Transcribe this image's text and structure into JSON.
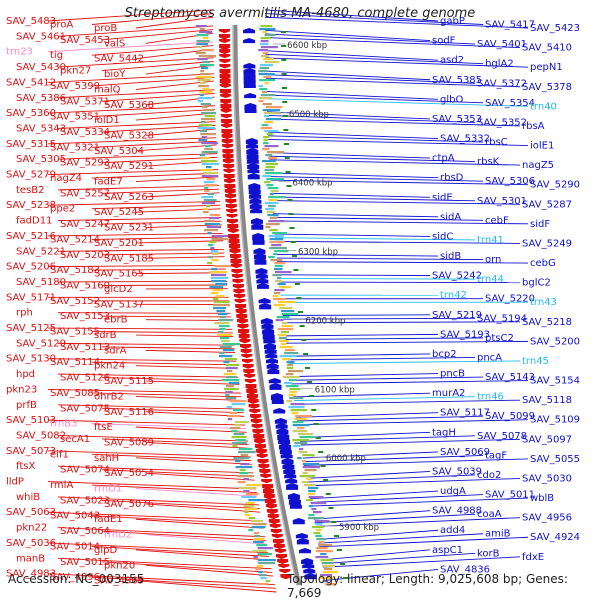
{
  "title": "Streptomyces avermitilis MA-4680, complete genome",
  "accession": "Accession: NC_003155",
  "summary": "Topology: linear; Length: 9,025,608 bp; Genes: 7,669",
  "colors": {
    "left_gene": "#e01010",
    "right_gene": "#1010d0",
    "trna_left": "#ff88c8",
    "trna_right": "#22bbee",
    "backbone": "#888888",
    "tick": "#228822"
  },
  "kbp_ticks": [
    {
      "label": "6600 kbp",
      "row": 0
    },
    {
      "label": "6500 kbp",
      "row": 1
    },
    {
      "label": "6400 kbp",
      "row": 2
    },
    {
      "label": "6300 kbp",
      "row": 3
    },
    {
      "label": "6200 kbp",
      "row": 4
    },
    {
      "label": "6100 kbp",
      "row": 5
    },
    {
      "label": "6000 kbp",
      "row": 6
    },
    {
      "label": "5900 kbp",
      "row": 7
    }
  ],
  "left_labels": [
    {
      "t": "SAV_5483",
      "k": "g"
    },
    {
      "t": "proA",
      "k": "g"
    },
    {
      "t": "proB",
      "k": "g"
    },
    {
      "t": "SAV_5461",
      "k": "g"
    },
    {
      "t": "SAV_5453",
      "k": "g"
    },
    {
      "t": "valS",
      "k": "g"
    },
    {
      "t": "trn23",
      "k": "t"
    },
    {
      "t": "tig",
      "k": "g"
    },
    {
      "t": "SAV_5442",
      "k": "g"
    },
    {
      "t": "SAV_5430",
      "k": "g"
    },
    {
      "t": "pkn27",
      "k": "g"
    },
    {
      "t": "bioY",
      "k": "g"
    },
    {
      "t": "SAV_5412",
      "k": "g"
    },
    {
      "t": "SAV_5399",
      "k": "g"
    },
    {
      "t": "malQ",
      "k": "g"
    },
    {
      "t": "SAV_5386",
      "k": "g"
    },
    {
      "t": "SAV_5371",
      "k": "g"
    },
    {
      "t": "SAV_5368",
      "k": "g"
    },
    {
      "t": "SAV_5360",
      "k": "g"
    },
    {
      "t": "SAV_5351",
      "k": "g"
    },
    {
      "t": "iolD1",
      "k": "g"
    },
    {
      "t": "SAV_5343",
      "k": "g"
    },
    {
      "t": "SAV_5334",
      "k": "g"
    },
    {
      "t": "SAV_5328",
      "k": "g"
    },
    {
      "t": "SAV_5315",
      "k": "g"
    },
    {
      "t": "SAV_5321",
      "k": "g"
    },
    {
      "t": "SAV_5304",
      "k": "g"
    },
    {
      "t": "SAV_5305",
      "k": "g"
    },
    {
      "t": "SAV_5293",
      "k": "g"
    },
    {
      "t": "SAV_5291",
      "k": "g"
    },
    {
      "t": "SAV_5279",
      "k": "g"
    },
    {
      "t": "nagZ4",
      "k": "g"
    },
    {
      "t": "fadE7",
      "k": "g"
    },
    {
      "t": "tesB2",
      "k": "g"
    },
    {
      "t": "SAV_5257",
      "k": "g"
    },
    {
      "t": "SAV_5263",
      "k": "g"
    },
    {
      "t": "SAV_5238",
      "k": "g"
    },
    {
      "t": "ppe2",
      "k": "g"
    },
    {
      "t": "SAV_5245",
      "k": "g"
    },
    {
      "t": "fadD11",
      "k": "g"
    },
    {
      "t": "SAV_5247",
      "k": "g"
    },
    {
      "t": "SAV_5231",
      "k": "g"
    },
    {
      "t": "SAV_5216",
      "k": "g"
    },
    {
      "t": "SAV_5214",
      "k": "g"
    },
    {
      "t": "SAV_5201",
      "k": "g"
    },
    {
      "t": "SAV_5221",
      "k": "g"
    },
    {
      "t": "SAV_5203",
      "k": "g"
    },
    {
      "t": "SAV_5185",
      "k": "g"
    },
    {
      "t": "SAV_5206",
      "k": "g"
    },
    {
      "t": "SAV_5183",
      "k": "g"
    },
    {
      "t": "SAV_5165",
      "k": "g"
    },
    {
      "t": "SAV_5180",
      "k": "g"
    },
    {
      "t": "SAV_5160",
      "k": "g"
    },
    {
      "t": "glcD2",
      "k": "g"
    },
    {
      "t": "SAV_5171",
      "k": "g"
    },
    {
      "t": "SAV_5152",
      "k": "g"
    },
    {
      "t": "SAV_5137",
      "k": "g"
    },
    {
      "t": "rph",
      "k": "g"
    },
    {
      "t": "SAV_5153",
      "k": "g"
    },
    {
      "t": "ebrB",
      "k": "g"
    },
    {
      "t": "SAV_5125",
      "k": "g"
    },
    {
      "t": "SAV_5155",
      "k": "g"
    },
    {
      "t": "sdrB",
      "k": "g"
    },
    {
      "t": "SAV_5129",
      "k": "g"
    },
    {
      "t": "SAV_5113",
      "k": "g"
    },
    {
      "t": "sdrA",
      "k": "g"
    },
    {
      "t": "SAV_5130",
      "k": "g"
    },
    {
      "t": "SAV_5114",
      "k": "g"
    },
    {
      "t": "pkn24",
      "k": "g"
    },
    {
      "t": "hpd",
      "k": "g"
    },
    {
      "t": "SAV_5126",
      "k": "g"
    },
    {
      "t": "SAV_5115",
      "k": "g"
    },
    {
      "t": "pkn23",
      "k": "g"
    },
    {
      "t": "SAV_5085",
      "k": "g"
    },
    {
      "t": "ohrB2",
      "k": "g"
    },
    {
      "t": "prfB",
      "k": "g"
    },
    {
      "t": "SAV_5075",
      "k": "g"
    },
    {
      "t": "SAV_5116",
      "k": "g"
    },
    {
      "t": "SAV_5103",
      "k": "g"
    },
    {
      "t": "rrnB3",
      "k": "t"
    },
    {
      "t": "ftsE",
      "k": "g"
    },
    {
      "t": "SAV_5082",
      "k": "g"
    },
    {
      "t": "secA1",
      "k": "g"
    },
    {
      "t": "SAV_5089",
      "k": "g"
    },
    {
      "t": "SAV_5073",
      "k": "g"
    },
    {
      "t": "eif1",
      "k": "g"
    },
    {
      "t": "sahH",
      "k": "g"
    },
    {
      "t": "ftsX",
      "k": "g"
    },
    {
      "t": "SAV_5074",
      "k": "g"
    },
    {
      "t": "SAV_5054",
      "k": "g"
    },
    {
      "t": "lldP",
      "k": "g"
    },
    {
      "t": "rmlA",
      "k": "g"
    },
    {
      "t": "rrnD1",
      "k": "t"
    },
    {
      "t": "whiB",
      "k": "g"
    },
    {
      "t": "SAV_5023",
      "k": "g"
    },
    {
      "t": "SAV_5076",
      "k": "g"
    },
    {
      "t": "SAV_5063",
      "k": "g"
    },
    {
      "t": "SAV_5043",
      "k": "g"
    },
    {
      "t": "fadE1",
      "k": "g"
    },
    {
      "t": "pkn22",
      "k": "g"
    },
    {
      "t": "SAV_5064",
      "k": "g"
    },
    {
      "t": "rrnD2",
      "k": "t"
    },
    {
      "t": "SAV_5036",
      "k": "g"
    },
    {
      "t": "SAV_5014",
      "k": "g"
    },
    {
      "t": "glpD",
      "k": "g"
    },
    {
      "t": "manB",
      "k": "g"
    },
    {
      "t": "SAV_5015",
      "k": "g"
    },
    {
      "t": "pkn20",
      "k": "g"
    },
    {
      "t": "SAV_4983",
      "k": "g"
    },
    {
      "t": "SAV_4996",
      "k": "g"
    },
    {
      "t": "SAV_4965",
      "k": "g"
    }
  ],
  "right_labels": [
    {
      "t": "gabP",
      "k": "g"
    },
    {
      "t": "SAV_5417",
      "k": "g"
    },
    {
      "t": "SAV_5423",
      "k": "g"
    },
    {
      "t": "sodF",
      "k": "g"
    },
    {
      "t": "SAV_5401",
      "k": "g"
    },
    {
      "t": "SAV_5410",
      "k": "g"
    },
    {
      "t": "asd2",
      "k": "g"
    },
    {
      "t": "bglA2",
      "k": "g"
    },
    {
      "t": "pepN1",
      "k": "g"
    },
    {
      "t": "SAV_5385",
      "k": "g"
    },
    {
      "t": "SAV_5372",
      "k": "g"
    },
    {
      "t": "SAV_5378",
      "k": "g"
    },
    {
      "t": "glbO",
      "k": "g"
    },
    {
      "t": "SAV_5354",
      "k": "g"
    },
    {
      "t": "trn40",
      "k": "t"
    },
    {
      "t": "SAV_5353",
      "k": "g"
    },
    {
      "t": "SAV_5352",
      "k": "g"
    },
    {
      "t": "rbsA",
      "k": "g"
    },
    {
      "t": "SAV_5332",
      "k": "g"
    },
    {
      "t": "rbsC",
      "k": "g"
    },
    {
      "t": "iolE1",
      "k": "g"
    },
    {
      "t": "ctpA",
      "k": "g"
    },
    {
      "t": "rbsK",
      "k": "g"
    },
    {
      "t": "nagZ5",
      "k": "g"
    },
    {
      "t": "rbsD",
      "k": "g"
    },
    {
      "t": "SAV_5306",
      "k": "g"
    },
    {
      "t": "SAV_5290",
      "k": "g"
    },
    {
      "t": "sidE",
      "k": "g"
    },
    {
      "t": "SAV_5301",
      "k": "g"
    },
    {
      "t": "SAV_5287",
      "k": "g"
    },
    {
      "t": "sidA",
      "k": "g"
    },
    {
      "t": "cebF",
      "k": "g"
    },
    {
      "t": "sidF",
      "k": "g"
    },
    {
      "t": "sidC",
      "k": "g"
    },
    {
      "t": "trn41",
      "k": "t"
    },
    {
      "t": "SAV_5249",
      "k": "g"
    },
    {
      "t": "sidB",
      "k": "g"
    },
    {
      "t": "orn",
      "k": "g"
    },
    {
      "t": "cebG",
      "k": "g"
    },
    {
      "t": "SAV_5242",
      "k": "g"
    },
    {
      "t": "trn44",
      "k": "t"
    },
    {
      "t": "bglC2",
      "k": "g"
    },
    {
      "t": "trn42",
      "k": "t"
    },
    {
      "t": "SAV_5220",
      "k": "g"
    },
    {
      "t": "trn43",
      "k": "t"
    },
    {
      "t": "SAV_5219",
      "k": "g"
    },
    {
      "t": "SAV_5194",
      "k": "g"
    },
    {
      "t": "SAV_5218",
      "k": "g"
    },
    {
      "t": "SAV_5193",
      "k": "g"
    },
    {
      "t": "ptsC2",
      "k": "g"
    },
    {
      "t": "SAV_5200",
      "k": "g"
    },
    {
      "t": "bcp2",
      "k": "g"
    },
    {
      "t": "pncA",
      "k": "g"
    },
    {
      "t": "trn45",
      "k": "t"
    },
    {
      "t": "pncB",
      "k": "g"
    },
    {
      "t": "SAV_5143",
      "k": "g"
    },
    {
      "t": "SAV_5154",
      "k": "g"
    },
    {
      "t": "murA2",
      "k": "g"
    },
    {
      "t": "trn46",
      "k": "t"
    },
    {
      "t": "SAV_5118",
      "k": "g"
    },
    {
      "t": "SAV_5117",
      "k": "g"
    },
    {
      "t": "SAV_5099",
      "k": "g"
    },
    {
      "t": "SAV_5109",
      "k": "g"
    },
    {
      "t": "tagH",
      "k": "g"
    },
    {
      "t": "SAV_5078",
      "k": "g"
    },
    {
      "t": "SAV_5097",
      "k": "g"
    },
    {
      "t": "SAV_5069",
      "k": "g"
    },
    {
      "t": "tagF",
      "k": "g"
    },
    {
      "t": "SAV_5055",
      "k": "g"
    },
    {
      "t": "SAV_5039",
      "k": "g"
    },
    {
      "t": "cdo2",
      "k": "g"
    },
    {
      "t": "SAV_5030",
      "k": "g"
    },
    {
      "t": "udgA",
      "k": "g"
    },
    {
      "t": "SAV_5011",
      "k": "g"
    },
    {
      "t": "wblB",
      "k": "g"
    },
    {
      "t": "SAV_4988",
      "k": "g"
    },
    {
      "t": "coaA",
      "k": "g"
    },
    {
      "t": "SAV_4956",
      "k": "g"
    },
    {
      "t": "add4",
      "k": "g"
    },
    {
      "t": "amiB",
      "k": "g"
    },
    {
      "t": "SAV_4924",
      "k": "g"
    },
    {
      "t": "aspC1",
      "k": "g"
    },
    {
      "t": "korB",
      "k": "g"
    },
    {
      "t": "fdxE",
      "k": "g"
    },
    {
      "t": "SAV_4836",
      "k": "g"
    }
  ]
}
